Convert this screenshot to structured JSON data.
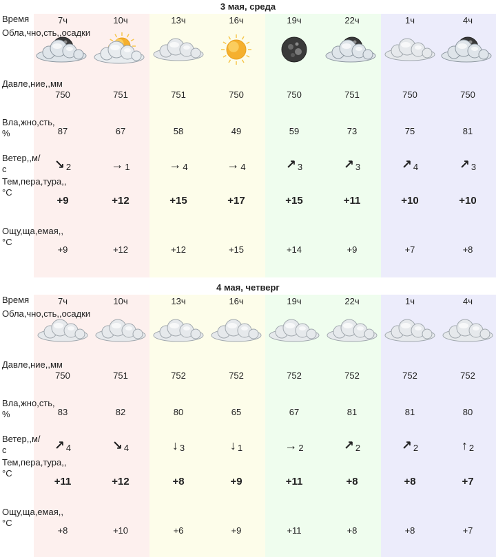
{
  "row_labels": {
    "time": "Время",
    "cloud": "Облачность, осадки",
    "cloud_lines": [
      "Обла",
      "чно",
      "сть,",
      "осадки"
    ],
    "pressure_lines": [
      "Давле",
      "ние,",
      "мм"
    ],
    "humidity_lines": [
      "Вла",
      "жно",
      "сть, %"
    ],
    "wind_lines": [
      "Ветер,",
      "м/с"
    ],
    "temp_lines": [
      "Тем",
      "пера",
      "тура,",
      "°C"
    ],
    "feels_lines": [
      "Ощу",
      "ща",
      "емая,",
      "°C"
    ]
  },
  "colors": {
    "morning": "#fdf0ee",
    "day": "#fdfdea",
    "evening": "#effdee",
    "night": "#ececfb"
  },
  "days": [
    {
      "title": "3 мая, среда",
      "slots": [
        {
          "time": "7ч",
          "icon": "cloud-moon-icon",
          "pressure": "750",
          "humidity": "87",
          "wind_dir": "↘",
          "wind_icon": "arrow-down-right-icon",
          "wind_speed": "2",
          "temp": "+9",
          "feels": "+9"
        },
        {
          "time": "10ч",
          "icon": "cloud-sun-icon",
          "pressure": "751",
          "humidity": "67",
          "wind_dir": "→",
          "wind_icon": "arrow-right-icon",
          "wind_speed": "1",
          "temp": "+12",
          "feels": "+12"
        },
        {
          "time": "13ч",
          "icon": "cloud-icon",
          "pressure": "751",
          "humidity": "58",
          "wind_dir": "→",
          "wind_icon": "arrow-right-icon",
          "wind_speed": "4",
          "temp": "+15",
          "feels": "+12"
        },
        {
          "time": "16ч",
          "icon": "sun-icon",
          "pressure": "750",
          "humidity": "49",
          "wind_dir": "→",
          "wind_icon": "arrow-right-icon",
          "wind_speed": "4",
          "temp": "+17",
          "feels": "+15"
        },
        {
          "time": "19ч",
          "icon": "moon-icon",
          "pressure": "750",
          "humidity": "59",
          "wind_dir": "↗",
          "wind_icon": "arrow-up-right-icon",
          "wind_speed": "3",
          "temp": "+15",
          "feels": "+14"
        },
        {
          "time": "22ч",
          "icon": "cloud-moon-icon",
          "pressure": "751",
          "humidity": "73",
          "wind_dir": "↗",
          "wind_icon": "arrow-up-right-icon",
          "wind_speed": "3",
          "temp": "+11",
          "feels": "+9"
        },
        {
          "time": "1ч",
          "icon": "cloud-icon",
          "pressure": "750",
          "humidity": "75",
          "wind_dir": "↗",
          "wind_icon": "arrow-up-right-icon",
          "wind_speed": "4",
          "temp": "+10",
          "feels": "+7"
        },
        {
          "time": "4ч",
          "icon": "cloud-moon-icon",
          "pressure": "750",
          "humidity": "81",
          "wind_dir": "↗",
          "wind_icon": "arrow-up-right-icon",
          "wind_speed": "3",
          "temp": "+10",
          "feels": "+8"
        }
      ]
    },
    {
      "title": "4 мая, четверг",
      "slots": [
        {
          "time": "7ч",
          "icon": "cloud-icon",
          "pressure": "750",
          "humidity": "83",
          "wind_dir": "↗",
          "wind_icon": "arrow-up-right-icon",
          "wind_speed": "4",
          "temp": "+11",
          "feels": "+8"
        },
        {
          "time": "10ч",
          "icon": "cloud-icon",
          "pressure": "751",
          "humidity": "82",
          "wind_dir": "↘",
          "wind_icon": "arrow-down-right-icon",
          "wind_speed": "4",
          "temp": "+12",
          "feels": "+10"
        },
        {
          "time": "13ч",
          "icon": "cloud-icon",
          "pressure": "752",
          "humidity": "80",
          "wind_dir": "↓",
          "wind_icon": "arrow-down-icon",
          "wind_speed": "3",
          "temp": "+8",
          "feels": "+6"
        },
        {
          "time": "16ч",
          "icon": "cloud-icon",
          "pressure": "752",
          "humidity": "65",
          "wind_dir": "↓",
          "wind_icon": "arrow-down-icon",
          "wind_speed": "1",
          "temp": "+9",
          "feels": "+9"
        },
        {
          "time": "19ч",
          "icon": "cloud-icon",
          "pressure": "752",
          "humidity": "67",
          "wind_dir": "→",
          "wind_icon": "arrow-right-icon",
          "wind_speed": "2",
          "temp": "+11",
          "feels": "+11"
        },
        {
          "time": "22ч",
          "icon": "cloud-icon",
          "pressure": "752",
          "humidity": "81",
          "wind_dir": "↗",
          "wind_icon": "arrow-up-right-icon",
          "wind_speed": "2",
          "temp": "+8",
          "feels": "+8"
        },
        {
          "time": "1ч",
          "icon": "cloud-icon",
          "pressure": "752",
          "humidity": "81",
          "wind_dir": "↗",
          "wind_icon": "arrow-up-right-icon",
          "wind_speed": "2",
          "temp": "+8",
          "feels": "+8"
        },
        {
          "time": "4ч",
          "icon": "cloud-icon",
          "pressure": "752",
          "humidity": "80",
          "wind_dir": "↑",
          "wind_icon": "arrow-up-icon",
          "wind_speed": "2",
          "temp": "+7",
          "feels": "+7"
        }
      ]
    }
  ]
}
